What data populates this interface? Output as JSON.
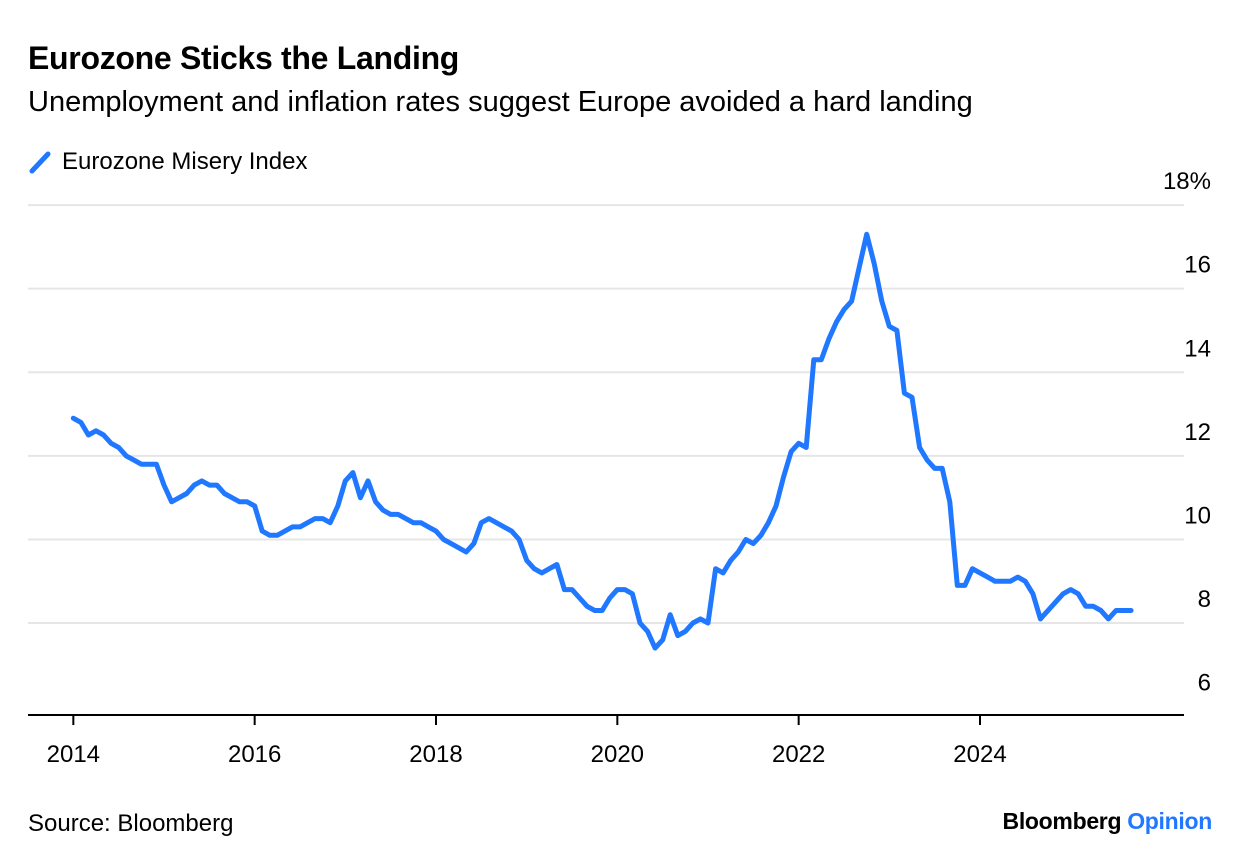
{
  "header": {
    "title": "Eurozone Sticks the Landing",
    "subtitle": "Unemployment and inflation rates suggest Europe avoided a hard landing"
  },
  "footer": {
    "source": "Source: Bloomberg",
    "brand_primary": "Bloomberg",
    "brand_secondary": "Opinion"
  },
  "colors": {
    "series": "#1f78ff",
    "grid": "#e6e6e6",
    "axis": "#000000"
  },
  "chart_data": {
    "type": "line",
    "title": "Eurozone Sticks the Landing",
    "subtitle": "Unemployment and inflation rates suggest Europe avoided a hard landing",
    "xlabel": "",
    "ylabel": "",
    "ylim": [
      5.8,
      18.6
    ],
    "xlim": [
      "2013-07",
      "2026-04"
    ],
    "y_ticks": [
      6,
      8,
      10,
      12,
      14,
      16,
      18
    ],
    "y_tick_labels": [
      "6",
      "8",
      "10",
      "12",
      "14",
      "16",
      "18%"
    ],
    "x_ticks": [
      "2014",
      "2016",
      "2018",
      "2020",
      "2022",
      "2024"
    ],
    "y_axis_side": "right",
    "grid": "horizontal",
    "legend_position": "top-left",
    "series": [
      {
        "name": "Eurozone Misery Index",
        "color": "#1f78ff",
        "points": [
          [
            "2014-01",
            12.9
          ],
          [
            "2014-02",
            12.8
          ],
          [
            "2014-03",
            12.5
          ],
          [
            "2014-04",
            12.6
          ],
          [
            "2014-05",
            12.5
          ],
          [
            "2014-06",
            12.3
          ],
          [
            "2014-07",
            12.2
          ],
          [
            "2014-08",
            12.0
          ],
          [
            "2014-09",
            11.9
          ],
          [
            "2014-10",
            11.8
          ],
          [
            "2014-11",
            11.8
          ],
          [
            "2014-12",
            11.8
          ],
          [
            "2015-01",
            11.3
          ],
          [
            "2015-02",
            10.9
          ],
          [
            "2015-03",
            11.0
          ],
          [
            "2015-04",
            11.1
          ],
          [
            "2015-05",
            11.3
          ],
          [
            "2015-06",
            11.4
          ],
          [
            "2015-07",
            11.3
          ],
          [
            "2015-08",
            11.3
          ],
          [
            "2015-09",
            11.1
          ],
          [
            "2015-10",
            11.0
          ],
          [
            "2015-11",
            10.9
          ],
          [
            "2015-12",
            10.9
          ],
          [
            "2016-01",
            10.8
          ],
          [
            "2016-02",
            10.2
          ],
          [
            "2016-03",
            10.1
          ],
          [
            "2016-04",
            10.1
          ],
          [
            "2016-05",
            10.2
          ],
          [
            "2016-06",
            10.3
          ],
          [
            "2016-07",
            10.3
          ],
          [
            "2016-08",
            10.4
          ],
          [
            "2016-09",
            10.5
          ],
          [
            "2016-10",
            10.5
          ],
          [
            "2016-11",
            10.4
          ],
          [
            "2016-12",
            10.8
          ],
          [
            "2017-01",
            11.4
          ],
          [
            "2017-02",
            11.6
          ],
          [
            "2017-03",
            11.0
          ],
          [
            "2017-04",
            11.4
          ],
          [
            "2017-05",
            10.9
          ],
          [
            "2017-06",
            10.7
          ],
          [
            "2017-07",
            10.6
          ],
          [
            "2017-08",
            10.6
          ],
          [
            "2017-09",
            10.5
          ],
          [
            "2017-10",
            10.4
          ],
          [
            "2017-11",
            10.4
          ],
          [
            "2017-12",
            10.3
          ],
          [
            "2018-01",
            10.2
          ],
          [
            "2018-02",
            10.0
          ],
          [
            "2018-03",
            9.9
          ],
          [
            "2018-04",
            9.8
          ],
          [
            "2018-05",
            9.7
          ],
          [
            "2018-06",
            9.9
          ],
          [
            "2018-07",
            10.4
          ],
          [
            "2018-08",
            10.5
          ],
          [
            "2018-09",
            10.4
          ],
          [
            "2018-10",
            10.3
          ],
          [
            "2018-11",
            10.2
          ],
          [
            "2018-12",
            10.0
          ],
          [
            "2019-01",
            9.5
          ],
          [
            "2019-02",
            9.3
          ],
          [
            "2019-03",
            9.2
          ],
          [
            "2019-04",
            9.3
          ],
          [
            "2019-05",
            9.4
          ],
          [
            "2019-06",
            8.8
          ],
          [
            "2019-07",
            8.8
          ],
          [
            "2019-08",
            8.6
          ],
          [
            "2019-09",
            8.4
          ],
          [
            "2019-10",
            8.3
          ],
          [
            "2019-11",
            8.3
          ],
          [
            "2019-12",
            8.6
          ],
          [
            "2020-01",
            8.8
          ],
          [
            "2020-02",
            8.8
          ],
          [
            "2020-03",
            8.7
          ],
          [
            "2020-04",
            8.0
          ],
          [
            "2020-05",
            7.8
          ],
          [
            "2020-06",
            7.4
          ],
          [
            "2020-07",
            7.6
          ],
          [
            "2020-08",
            8.2
          ],
          [
            "2020-09",
            7.7
          ],
          [
            "2020-10",
            7.8
          ],
          [
            "2020-11",
            8.0
          ],
          [
            "2020-12",
            8.1
          ],
          [
            "2021-01",
            8.0
          ],
          [
            "2021-02",
            9.3
          ],
          [
            "2021-03",
            9.2
          ],
          [
            "2021-04",
            9.5
          ],
          [
            "2021-05",
            9.7
          ],
          [
            "2021-06",
            10.0
          ],
          [
            "2021-07",
            9.9
          ],
          [
            "2021-08",
            10.1
          ],
          [
            "2021-09",
            10.4
          ],
          [
            "2021-10",
            10.8
          ],
          [
            "2021-11",
            11.5
          ],
          [
            "2021-12",
            12.1
          ],
          [
            "2022-01",
            12.3
          ],
          [
            "2022-02",
            12.2
          ],
          [
            "2022-03",
            14.3
          ],
          [
            "2022-04",
            14.3
          ],
          [
            "2022-05",
            14.8
          ],
          [
            "2022-06",
            15.2
          ],
          [
            "2022-07",
            15.5
          ],
          [
            "2022-08",
            15.7
          ],
          [
            "2022-09",
            16.5
          ],
          [
            "2022-10",
            17.3
          ],
          [
            "2022-11",
            16.6
          ],
          [
            "2022-12",
            15.7
          ],
          [
            "2023-01",
            15.1
          ],
          [
            "2023-02",
            15.0
          ],
          [
            "2023-03",
            13.5
          ],
          [
            "2023-04",
            13.4
          ],
          [
            "2023-05",
            12.2
          ],
          [
            "2023-06",
            11.9
          ],
          [
            "2023-07",
            11.7
          ],
          [
            "2023-08",
            11.7
          ],
          [
            "2023-09",
            10.9
          ],
          [
            "2023-10",
            8.9
          ],
          [
            "2023-11",
            8.9
          ],
          [
            "2023-12",
            9.3
          ],
          [
            "2024-01",
            9.2
          ],
          [
            "2024-02",
            9.1
          ],
          [
            "2024-03",
            9.0
          ],
          [
            "2024-04",
            9.0
          ],
          [
            "2024-05",
            9.0
          ],
          [
            "2024-06",
            9.1
          ],
          [
            "2024-07",
            9.0
          ],
          [
            "2024-08",
            8.7
          ],
          [
            "2024-09",
            8.1
          ],
          [
            "2024-10",
            8.3
          ],
          [
            "2024-11",
            8.5
          ],
          [
            "2024-12",
            8.7
          ],
          [
            "2025-01",
            8.8
          ],
          [
            "2025-02",
            8.7
          ],
          [
            "2025-03",
            8.4
          ],
          [
            "2025-04",
            8.4
          ],
          [
            "2025-05",
            8.3
          ],
          [
            "2025-06",
            8.1
          ],
          [
            "2025-07",
            8.3
          ],
          [
            "2025-08",
            8.3
          ],
          [
            "2025-09",
            8.3
          ]
        ]
      }
    ]
  }
}
